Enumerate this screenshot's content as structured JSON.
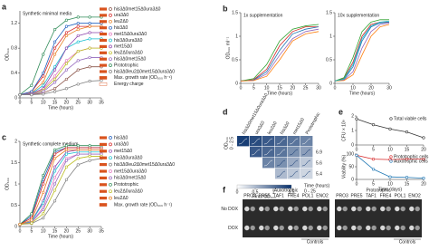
{
  "chart_data": [
    {
      "type": "line",
      "panel_label": "a",
      "title": "Synthetic minimal media",
      "xlabel": "Time (hours)",
      "ylabel": "OD₆₀₀",
      "x": [
        0,
        5,
        10,
        15,
        20,
        25,
        30,
        35
      ],
      "xlim": [
        0,
        35
      ],
      "xticks": [
        0,
        5,
        10,
        15,
        20,
        25,
        30,
        35
      ],
      "ylim": [
        0,
        1.4
      ],
      "yticks": [
        0,
        0.4,
        0.8,
        1.2
      ],
      "markers": true,
      "legend": "right",
      "legend_notes": [
        "Max. growth rate (OD₆₀₀ h⁻¹)",
        "Energy charge"
      ],
      "series": [
        {
          "name": "his3Δ0met15Δ0ura3Δ0",
          "color": "#8c564b",
          "values": [
            0.05,
            0.05,
            0.08,
            0.15,
            0.3,
            0.45,
            0.5,
            0.5
          ]
        },
        {
          "name": "ura3Δ0",
          "color": "#d62728",
          "values": [
            0.05,
            0.1,
            0.35,
            0.8,
            1.05,
            1.15,
            1.15,
            1.15
          ]
        },
        {
          "name": "leu2Δ0",
          "color": "#e67e22",
          "values": [
            0.05,
            0.08,
            0.25,
            0.7,
            1.0,
            1.1,
            1.15,
            1.15
          ]
        },
        {
          "name": "his3Δ0",
          "color": "#1f5fbf",
          "values": [
            0.05,
            0.1,
            0.4,
            0.9,
            1.15,
            1.2,
            1.2,
            1.2
          ]
        },
        {
          "name": "met15Δ0ura3Δ0",
          "color": "#e377c2",
          "values": [
            0.05,
            0.07,
            0.14,
            0.35,
            0.6,
            0.75,
            0.8,
            0.8
          ]
        },
        {
          "name": "his3Δ0ura3Δ0",
          "color": "#17becf",
          "values": [
            0.05,
            0.07,
            0.2,
            0.5,
            0.8,
            0.9,
            0.95,
            0.95
          ]
        },
        {
          "name": "met15Δ0",
          "color": "#8e44ad",
          "values": [
            0.05,
            0.07,
            0.15,
            0.45,
            0.8,
            1.0,
            1.05,
            1.05
          ]
        },
        {
          "name": "leu2Δ0ura3Δ0",
          "color": "#bcbd22",
          "values": [
            0.05,
            0.06,
            0.12,
            0.3,
            0.55,
            0.75,
            0.8,
            0.8
          ]
        },
        {
          "name": "his3Δ0met15Δ0",
          "color": "#9467bd",
          "values": [
            0.05,
            0.06,
            0.1,
            0.25,
            0.45,
            0.6,
            0.65,
            0.65
          ]
        },
        {
          "name": "Prototrophic",
          "color": "#2e8b57",
          "values": [
            0.05,
            0.2,
            0.7,
            1.1,
            1.25,
            1.3,
            1.3,
            1.3
          ]
        },
        {
          "name": "his3Δ0leu2Δ0met15Δ0ura3Δ0",
          "color": "#7f7f7f",
          "values": [
            0.05,
            0.05,
            0.06,
            0.1,
            0.15,
            0.22,
            0.27,
            0.28
          ]
        }
      ]
    },
    {
      "type": "line",
      "panel_label": "b",
      "title": "1x supplementation",
      "xlabel": "Time (hours)",
      "ylabel": "OD₆₀₀ ml⁻¹",
      "x": [
        0,
        5,
        10,
        15,
        20,
        25,
        30
      ],
      "xlim": [
        0,
        30
      ],
      "xticks": [
        0,
        5,
        10,
        15,
        20,
        25,
        30
      ],
      "ylim": [
        0,
        1.5
      ],
      "yticks": [
        0,
        0.5,
        1,
        1.5
      ],
      "series": [
        {
          "color": "#d62728",
          "values": [
            0.05,
            0.08,
            0.3,
            0.8,
            1.1,
            1.2,
            1.2
          ]
        },
        {
          "color": "#1f77b4",
          "values": [
            0.05,
            0.07,
            0.25,
            0.7,
            1.05,
            1.15,
            1.2
          ]
        },
        {
          "color": "#2ca02c",
          "values": [
            0.05,
            0.1,
            0.4,
            0.9,
            1.15,
            1.22,
            1.25
          ]
        },
        {
          "color": "#9467bd",
          "values": [
            0.05,
            0.06,
            0.2,
            0.6,
            0.95,
            1.1,
            1.15
          ]
        },
        {
          "color": "#ff7f0e",
          "values": [
            0.05,
            0.06,
            0.15,
            0.5,
            0.9,
            1.05,
            1.1
          ]
        }
      ]
    },
    {
      "type": "line",
      "title": "10x supplementation",
      "xlabel": "Time (hours)",
      "x": [
        0,
        5,
        10,
        15,
        20,
        25,
        30
      ],
      "xlim": [
        0,
        30
      ],
      "xticks": [
        0,
        10,
        20,
        30
      ],
      "ylim": [
        0,
        1.5
      ],
      "yticks": [
        0,
        0.5,
        1,
        1.5
      ],
      "series": [
        {
          "color": "#d62728",
          "values": [
            0.05,
            0.1,
            0.45,
            1.0,
            1.25,
            1.3,
            1.3
          ]
        },
        {
          "color": "#1f77b4",
          "values": [
            0.05,
            0.08,
            0.35,
            0.9,
            1.2,
            1.28,
            1.3
          ]
        },
        {
          "color": "#2ca02c",
          "values": [
            0.05,
            0.12,
            0.55,
            1.1,
            1.3,
            1.35,
            1.35
          ]
        },
        {
          "color": "#9467bd",
          "values": [
            0.05,
            0.07,
            0.25,
            0.75,
            1.1,
            1.25,
            1.28
          ]
        },
        {
          "color": "#ff7f0e",
          "values": [
            0.05,
            0.06,
            0.18,
            0.6,
            1.0,
            1.2,
            1.25
          ]
        },
        {
          "color": "#17becf",
          "values": [
            0.05,
            0.09,
            0.4,
            0.95,
            1.22,
            1.3,
            1.32
          ]
        }
      ]
    },
    {
      "type": "line",
      "panel_label": "c",
      "title": "Synthetic complete medium",
      "xlabel": "Time (hours)",
      "ylabel": "OD₆₀₀",
      "x": [
        0,
        5,
        10,
        15,
        20,
        25,
        30,
        35
      ],
      "xlim": [
        0,
        35
      ],
      "xticks": [
        0,
        5,
        10,
        15,
        20,
        25,
        30,
        35
      ],
      "ylim": [
        0,
        2
      ],
      "yticks": [
        0,
        0.5,
        1,
        1.5,
        2
      ],
      "markers": true,
      "legend": "right",
      "legend_notes": [
        "Max. growth rate (OD₆₀₀ h⁻¹)"
      ],
      "series": [
        {
          "name": "his3Δ0",
          "color": "#1f5fbf",
          "values": [
            0.05,
            0.25,
            1.1,
            1.75,
            1.85,
            1.85,
            1.85,
            1.85
          ]
        },
        {
          "name": "ura3Δ0",
          "color": "#d62728",
          "values": [
            0.05,
            0.2,
            1.0,
            1.7,
            1.85,
            1.85,
            1.85,
            1.85
          ]
        },
        {
          "name": "met15Δ0",
          "color": "#8e44ad",
          "values": [
            0.05,
            0.12,
            0.6,
            1.4,
            1.75,
            1.8,
            1.8,
            1.8
          ]
        },
        {
          "name": "his3Δ0ura3Δ0",
          "color": "#17becf",
          "values": [
            0.05,
            0.12,
            0.55,
            1.3,
            1.7,
            1.75,
            1.75,
            1.75
          ]
        },
        {
          "name": "his3Δ0leu2Δ0met15Δ0ura3Δ0",
          "color": "#7f7f7f",
          "values": [
            0.05,
            0.07,
            0.2,
            0.6,
            1.1,
            1.45,
            1.55,
            1.6
          ]
        },
        {
          "name": "met15Δ0ura3Δ0",
          "color": "#e377c2",
          "values": [
            0.05,
            0.1,
            0.45,
            1.15,
            1.6,
            1.7,
            1.7,
            1.7
          ]
        },
        {
          "name": "his3Δ0met15Δ0",
          "color": "#9467bd",
          "values": [
            0.05,
            0.1,
            0.4,
            1.0,
            1.55,
            1.7,
            1.7,
            1.7
          ]
        },
        {
          "name": "Prototrophic",
          "color": "#2e8b57",
          "values": [
            0.05,
            0.3,
            1.2,
            1.8,
            1.9,
            1.9,
            1.9,
            1.9
          ]
        },
        {
          "name": "leu2Δ0ura3Δ0",
          "color": "#bcbd22",
          "values": [
            0.05,
            0.08,
            0.3,
            0.85,
            1.4,
            1.6,
            1.65,
            1.65
          ]
        },
        {
          "name": "leu2Δ0",
          "color": "#e67e22",
          "values": [
            0.05,
            0.15,
            0.8,
            1.6,
            1.8,
            1.8,
            1.8,
            1.8
          ]
        }
      ]
    },
    {
      "type": "heatmap",
      "panel_label": "d",
      "columns": [
        "his3Δ0met15Δ0ura3Δ0",
        "ura3Δ0",
        "leu2Δ0",
        "his3Δ0",
        "met15Δ0",
        "Prototrophic"
      ],
      "rows": [
        null,
        "6.9",
        "5.6",
        "5.4"
      ],
      "values": [
        [
          1.4,
          1.3,
          1.2,
          1.1,
          1.0,
          0.9
        ],
        [
          null,
          1.2,
          1.1,
          1.0,
          0.8,
          0.7
        ],
        [
          null,
          null,
          0.9,
          0.8,
          0.6,
          0.4
        ],
        [
          null,
          null,
          null,
          0.5,
          0.4,
          0.3
        ]
      ],
      "zlim": [
        0,
        1.5
      ],
      "colorbar_ticks": [
        0,
        0.5,
        1,
        1.5
      ],
      "colorbar_label": "Final OD₆₀₀",
      "colors": [
        "#ffffff",
        "#08306b"
      ],
      "inset_xlabel": "Time (hours)",
      "inset_xrange": "0 - 25",
      "inset_ylabel": "OD₆₀₀",
      "inset_yrange": "0 - 2.5"
    },
    {
      "type": "line",
      "panel_label": "e",
      "ylabel": "CFU × 10⁸",
      "markers": true,
      "legend": "upper right",
      "x": [
        0,
        5,
        10,
        15,
        20
      ],
      "xlim": [
        0,
        20
      ],
      "xticks": [
        0,
        5,
        10,
        15,
        20
      ],
      "ylim": [
        0,
        2
      ],
      "yticks": [
        0,
        1,
        2
      ],
      "series": [
        {
          "name": "Total viable cells",
          "color": "#333333",
          "values": [
            1.8,
            1.4,
            1.1,
            0.9,
            0.5
          ]
        }
      ]
    },
    {
      "type": "line",
      "xlabel": "Time (days)",
      "ylabel": "Viability (%)",
      "markers": true,
      "legend": "upper right",
      "x": [
        0,
        5,
        10,
        15,
        20
      ],
      "xlim": [
        0,
        20
      ],
      "xticks": [
        0,
        5,
        10,
        15,
        20
      ],
      "ylim": [
        0,
        100
      ],
      "yticks": [
        0,
        50,
        100
      ],
      "series": [
        {
          "name": "Prototrophic cells",
          "color": "#d62728",
          "values": [
            95,
            80,
            78,
            80,
            80
          ]
        },
        {
          "name": "Auxotrophic cells",
          "color": "#1f77b4",
          "values": [
            95,
            40,
            10,
            8,
            5
          ]
        }
      ]
    },
    {
      "type": "spot-assay",
      "panel_label": "f",
      "groups": [
        {
          "name": "Auxotrophic",
          "columns": [
            "PRO3",
            "PRE5",
            "TAF1",
            "FRE4",
            "POL1",
            "ENO2"
          ]
        },
        {
          "name": "Prototrophic",
          "columns": [
            "PRO3",
            "PRE5",
            "TAF1",
            "FRE4",
            "POL1",
            "ENO2"
          ]
        }
      ],
      "rows": [
        "No DOX",
        "DOX"
      ],
      "controls_label": "Controls"
    }
  ]
}
